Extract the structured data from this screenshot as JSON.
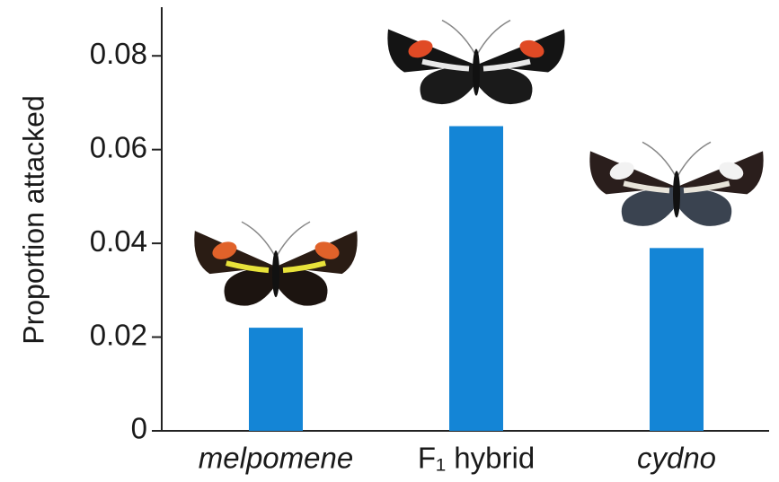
{
  "chart_data": {
    "type": "bar",
    "y_label": "Proportion attacked",
    "categories": [
      "melpomene",
      "F₁ hybrid",
      "cydno"
    ],
    "values": [
      0.022,
      0.065,
      0.039
    ],
    "color": "#1485d6",
    "ylim": [
      0,
      0.09
    ],
    "yticks": [
      0,
      0.02,
      0.04,
      0.06,
      0.08
    ]
  }
}
